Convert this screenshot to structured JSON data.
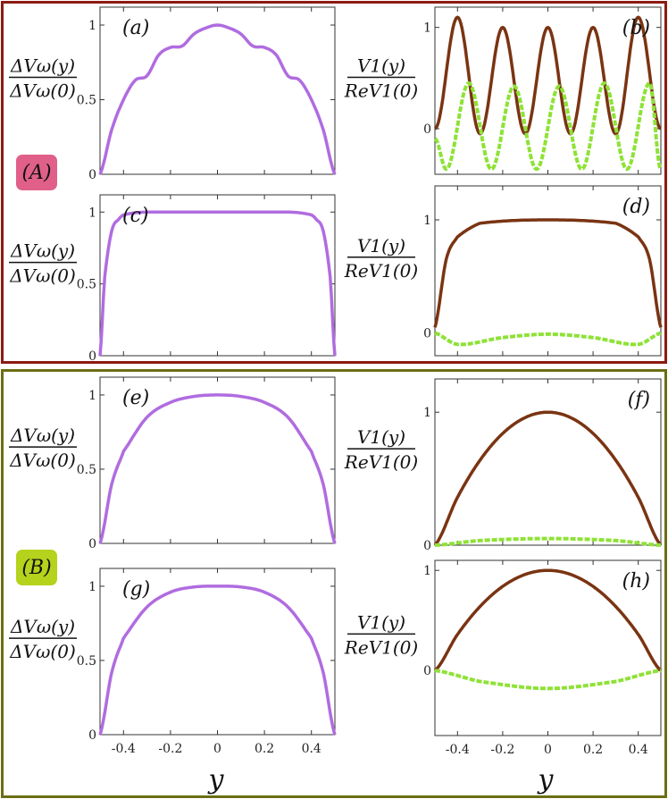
{
  "groups": [
    {
      "label": "(A)",
      "border_color": "#8b1a12",
      "badge_color": "#e0608a"
    },
    {
      "label": "(B)",
      "border_color": "#6b6e14",
      "badge_color": "#b5d21c"
    }
  ],
  "colors": {
    "dv_line": "#b06ce0",
    "re_line": "#7a3412",
    "im_line": "#8ee236"
  },
  "x_axis": {
    "label": "y",
    "ticks": [
      -0.4,
      -0.2,
      0,
      0.2,
      0.4
    ],
    "range": [
      -0.5,
      0.5
    ]
  },
  "chart_data": [
    {
      "panel": "(a)",
      "type": "line",
      "ylabel": "ΔVω(y) / ΔVω(0)",
      "ylim": [
        0,
        1.12
      ],
      "yticks": [
        0,
        0.5,
        1
      ],
      "series": [
        {
          "color": "#b06ce0",
          "style": "line",
          "shape": "stepped_dome",
          "x": [
            -0.5,
            -0.45,
            -0.4,
            -0.35,
            -0.3,
            -0.25,
            -0.2,
            -0.15,
            -0.1,
            -0.05,
            0,
            0.05,
            0.1,
            0.15,
            0.2,
            0.25,
            0.3,
            0.35,
            0.4,
            0.45,
            0.5
          ],
          "y": [
            0,
            0.3,
            0.5,
            0.63,
            0.66,
            0.8,
            0.85,
            0.86,
            0.94,
            0.98,
            1.0,
            0.98,
            0.94,
            0.86,
            0.85,
            0.8,
            0.66,
            0.63,
            0.5,
            0.3,
            0
          ]
        }
      ]
    },
    {
      "panel": "(b)",
      "type": "line",
      "ylabel": "V1(y) / ReV1(0)",
      "ylim": [
        -0.45,
        1.2
      ],
      "yticks": [
        0,
        1
      ],
      "series": [
        {
          "color": "#7a3412",
          "style": "line",
          "shape": "cos_wave",
          "x": [
            -0.5,
            -0.4,
            -0.3,
            -0.2,
            -0.1,
            0,
            0.1,
            0.2,
            0.3,
            0.4,
            0.5
          ],
          "y": [
            0.0,
            1.1,
            -0.05,
            1.0,
            -0.05,
            1.0,
            -0.05,
            1.0,
            -0.05,
            1.1,
            0.0
          ]
        },
        {
          "color": "#8ee236",
          "style": "dashed",
          "shape": "sin_wave",
          "x": [
            -0.5,
            -0.45,
            -0.35,
            -0.25,
            -0.15,
            -0.05,
            0.05,
            0.15,
            0.25,
            0.35,
            0.45,
            0.5
          ],
          "y": [
            -0.1,
            -0.4,
            0.45,
            -0.4,
            0.42,
            -0.4,
            0.42,
            -0.4,
            0.45,
            -0.4,
            0.45,
            -0.4
          ]
        }
      ]
    },
    {
      "panel": "(c)",
      "type": "line",
      "ylabel": "ΔVω(y) / ΔVω(0)",
      "ylim": [
        0,
        1.12
      ],
      "yticks": [
        0,
        0.5,
        1
      ],
      "series": [
        {
          "color": "#b06ce0",
          "style": "line",
          "shape": "flat_top",
          "x": [
            -0.5,
            -0.48,
            -0.45,
            -0.42,
            -0.4,
            -0.35,
            -0.3,
            0,
            0.3,
            0.35,
            0.4,
            0.42,
            0.45,
            0.48,
            0.5
          ],
          "y": [
            0,
            0.55,
            0.87,
            0.95,
            0.98,
            0.995,
            1.0,
            1.0,
            1.0,
            0.995,
            0.98,
            0.95,
            0.87,
            0.55,
            0
          ]
        }
      ]
    },
    {
      "panel": "(d)",
      "type": "line",
      "ylabel": "V1(y) / ReV1(0)",
      "ylim": [
        -0.2,
        1.3
      ],
      "yticks": [
        0,
        1
      ],
      "series": [
        {
          "color": "#7a3412",
          "style": "line",
          "shape": "flat_top",
          "x": [
            -0.5,
            -0.45,
            -0.4,
            -0.3,
            0,
            0.3,
            0.4,
            0.45,
            0.5
          ],
          "y": [
            0.05,
            0.65,
            0.85,
            0.97,
            1.0,
            0.97,
            0.85,
            0.65,
            0.05
          ]
        },
        {
          "color": "#8ee236",
          "style": "dashed",
          "shape": "double_well",
          "x": [
            -0.5,
            -0.4,
            -0.2,
            0,
            0.2,
            0.4,
            0.5
          ],
          "y": [
            0.0,
            -0.1,
            -0.04,
            -0.01,
            -0.04,
            -0.1,
            0.0
          ]
        }
      ]
    },
    {
      "panel": "(e)",
      "type": "line",
      "ylabel": "ΔVω(y) / ΔVω(0)",
      "ylim": [
        0,
        1.12
      ],
      "yticks": [
        0,
        0.5,
        1
      ],
      "series": [
        {
          "color": "#b06ce0",
          "style": "line",
          "shape": "dome",
          "x": [
            -0.5,
            -0.45,
            -0.4,
            -0.3,
            -0.2,
            -0.1,
            0,
            0.1,
            0.2,
            0.3,
            0.4,
            0.45,
            0.5
          ],
          "y": [
            0,
            0.4,
            0.62,
            0.85,
            0.95,
            0.99,
            1.0,
            0.99,
            0.95,
            0.85,
            0.62,
            0.4,
            0
          ]
        }
      ]
    },
    {
      "panel": "(f)",
      "type": "line",
      "ylabel": "V1(y) / ReV1(0)",
      "ylim": [
        0,
        1.25
      ],
      "yticks": [
        0,
        1
      ],
      "series": [
        {
          "color": "#7a3412",
          "style": "line",
          "shape": "parabola",
          "x": [
            -0.5,
            -0.4,
            -0.3,
            -0.2,
            -0.1,
            0,
            0.1,
            0.2,
            0.3,
            0.4,
            0.5
          ],
          "y": [
            0.0,
            0.36,
            0.64,
            0.84,
            0.96,
            1.0,
            0.96,
            0.84,
            0.64,
            0.36,
            0.0
          ]
        },
        {
          "color": "#8ee236",
          "style": "dashed",
          "shape": "parabola",
          "x": [
            -0.5,
            -0.3,
            0,
            0.3,
            0.5
          ],
          "y": [
            0.0,
            0.035,
            0.05,
            0.035,
            0.0
          ]
        }
      ]
    },
    {
      "panel": "(g)",
      "type": "line",
      "ylabel": "ΔVω(y) / ΔVω(0)",
      "ylim": [
        0,
        1.12
      ],
      "yticks": [
        0,
        0.5,
        1
      ],
      "series": [
        {
          "color": "#b06ce0",
          "style": "line",
          "shape": "dome",
          "x": [
            -0.5,
            -0.45,
            -0.4,
            -0.3,
            -0.2,
            -0.1,
            0,
            0.1,
            0.2,
            0.3,
            0.4,
            0.45,
            0.5
          ],
          "y": [
            0,
            0.42,
            0.65,
            0.86,
            0.96,
            0.995,
            1.0,
            0.995,
            0.96,
            0.86,
            0.65,
            0.42,
            0
          ]
        }
      ]
    },
    {
      "panel": "(h)",
      "type": "line",
      "ylabel": "V1(y) / ReV1(0)",
      "ylim": [
        -0.65,
        1.1
      ],
      "yticks": [
        0,
        1
      ],
      "series": [
        {
          "color": "#7a3412",
          "style": "line",
          "shape": "parabola",
          "x": [
            -0.5,
            -0.4,
            -0.3,
            -0.2,
            -0.1,
            0,
            0.1,
            0.2,
            0.3,
            0.4,
            0.5
          ],
          "y": [
            0.0,
            0.36,
            0.64,
            0.84,
            0.96,
            1.0,
            0.96,
            0.84,
            0.64,
            0.36,
            0.0
          ]
        },
        {
          "color": "#8ee236",
          "style": "dashed",
          "shape": "parabola",
          "x": [
            -0.5,
            -0.3,
            0,
            0.3,
            0.5
          ],
          "y": [
            0.0,
            -0.11,
            -0.18,
            -0.11,
            0.0
          ]
        }
      ]
    }
  ]
}
